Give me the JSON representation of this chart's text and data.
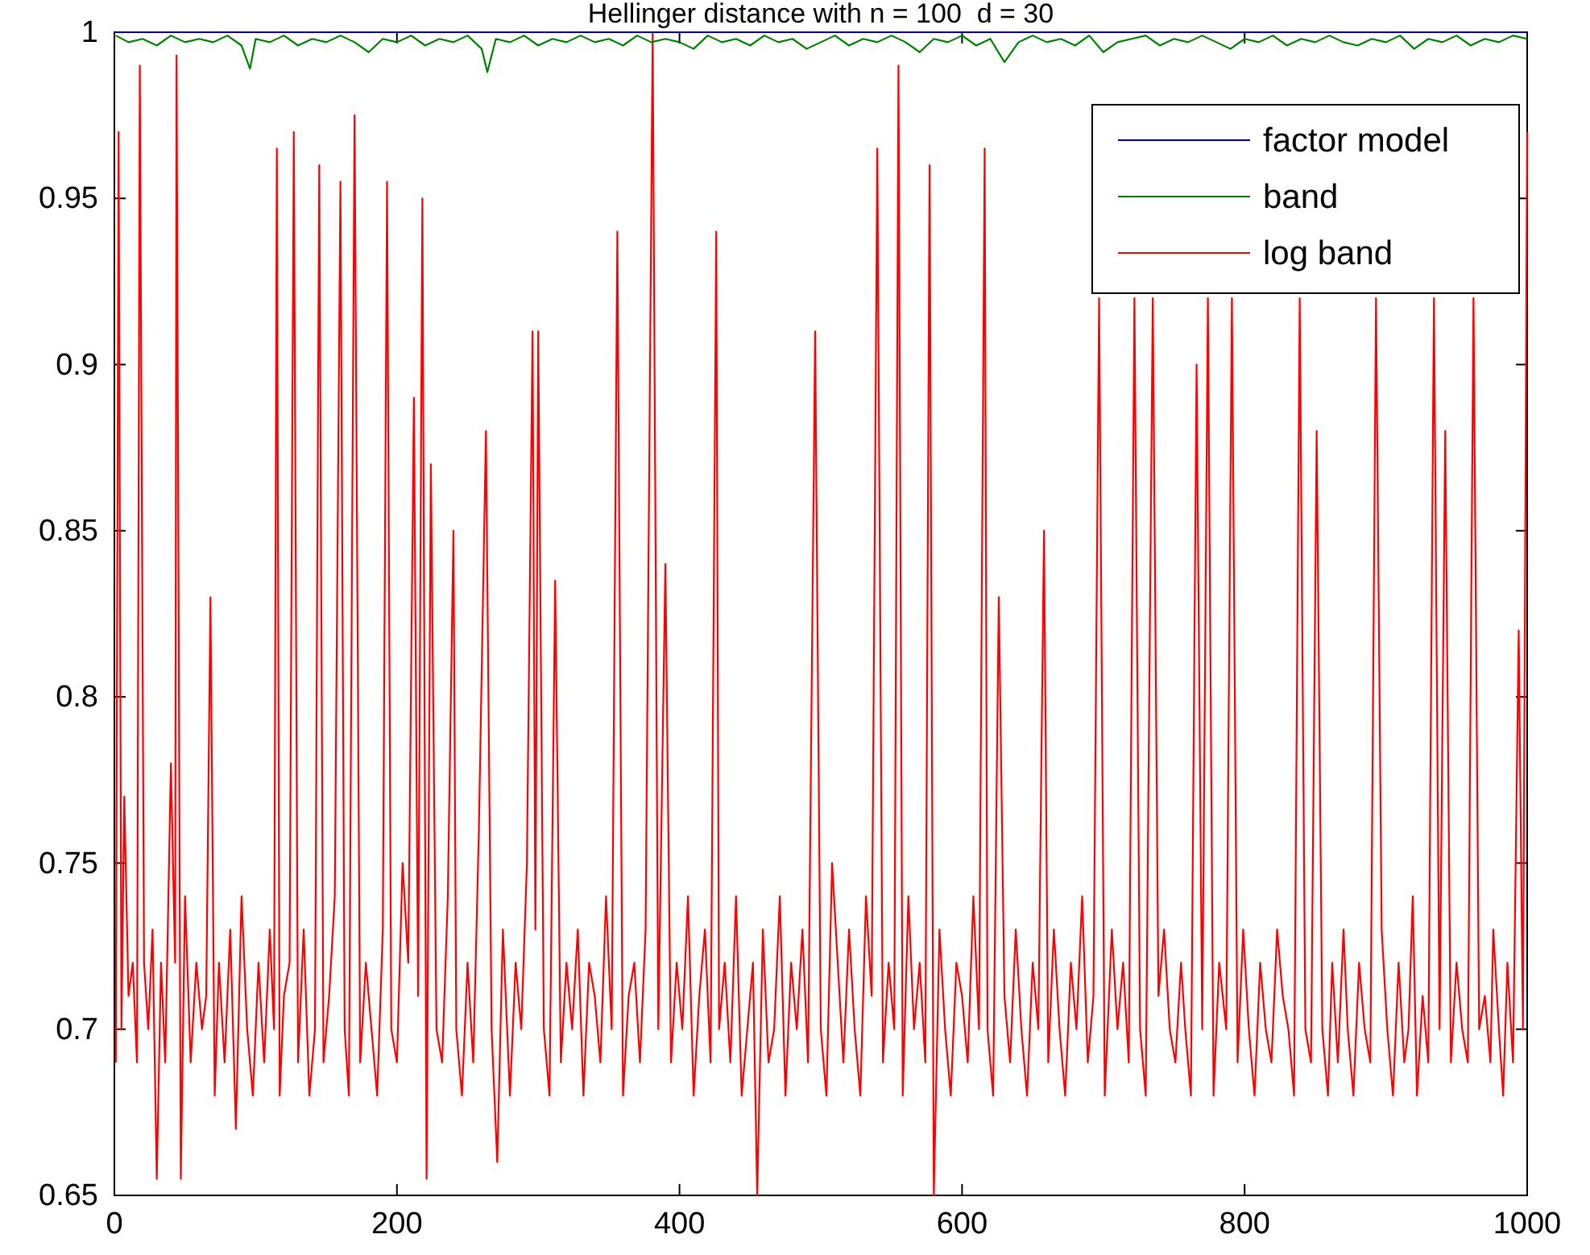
{
  "chart_data": {
    "type": "line",
    "title": "Hellinger distance with n = 100  d = 30",
    "xlim": [
      0,
      1000
    ],
    "ylim": [
      0.65,
      1
    ],
    "xticks": [
      0,
      200,
      400,
      600,
      800,
      1000
    ],
    "yticks": [
      0.65,
      {
        "value": 0.7,
        "label": "0.7"
      },
      0.75,
      {
        "value": 0.8,
        "label": "0.8"
      },
      0.85,
      {
        "value": 0.9,
        "label": "0.9"
      },
      0.95,
      {
        "value": 1,
        "label": "1"
      }
    ],
    "grid": false,
    "legend": "top right",
    "marker": "none",
    "line_style": "solid",
    "series": [
      {
        "name": "factor model",
        "color": "#00008b",
        "x": [
          1,
          1000
        ],
        "values": [
          1,
          1
        ]
      },
      {
        "name": "band",
        "color": "#008000",
        "x": [
          1,
          10,
          20,
          30,
          40,
          50,
          60,
          70,
          80,
          90,
          96,
          100,
          110,
          120,
          130,
          140,
          150,
          160,
          170,
          180,
          190,
          200,
          210,
          220,
          230,
          240,
          250,
          260,
          264,
          270,
          280,
          290,
          300,
          310,
          320,
          330,
          340,
          350,
          360,
          370,
          380,
          390,
          400,
          410,
          420,
          430,
          440,
          450,
          460,
          470,
          480,
          490,
          500,
          510,
          520,
          530,
          540,
          550,
          560,
          570,
          580,
          590,
          600,
          610,
          620,
          630,
          640,
          650,
          660,
          670,
          680,
          690,
          700,
          710,
          720,
          730,
          740,
          750,
          760,
          770,
          780,
          790,
          800,
          810,
          820,
          830,
          840,
          850,
          860,
          870,
          880,
          890,
          900,
          910,
          920,
          930,
          940,
          950,
          960,
          970,
          980,
          990,
          1000
        ],
        "values": [
          0.999,
          0.997,
          0.998,
          0.996,
          0.999,
          0.997,
          0.998,
          0.997,
          0.999,
          0.996,
          0.989,
          0.998,
          0.997,
          0.999,
          0.996,
          0.998,
          0.997,
          0.999,
          0.997,
          0.994,
          0.998,
          0.997,
          0.999,
          0.996,
          0.998,
          0.997,
          0.999,
          0.995,
          0.988,
          0.998,
          0.997,
          0.999,
          0.996,
          0.998,
          0.997,
          0.999,
          0.997,
          0.998,
          0.996,
          0.999,
          0.997,
          0.998,
          0.997,
          0.995,
          0.999,
          0.997,
          0.998,
          0.996,
          0.999,
          0.997,
          0.998,
          0.995,
          0.997,
          0.999,
          0.996,
          0.998,
          0.997,
          0.999,
          0.997,
          0.994,
          0.998,
          0.997,
          0.999,
          0.996,
          0.998,
          0.991,
          0.997,
          0.999,
          0.997,
          0.998,
          0.996,
          0.999,
          0.994,
          0.997,
          0.998,
          0.999,
          0.996,
          0.998,
          0.997,
          0.999,
          0.997,
          0.995,
          0.998,
          0.997,
          0.999,
          0.996,
          0.998,
          0.997,
          0.999,
          0.997,
          0.996,
          0.998,
          0.997,
          0.999,
          0.995,
          0.998,
          0.997,
          0.999,
          0.996,
          0.998,
          0.997,
          0.999,
          0.998
        ]
      },
      {
        "name": "log band",
        "color": "#ff0000",
        "x": [
          1,
          3,
          5,
          7,
          10,
          13,
          16,
          18,
          21,
          24,
          27,
          30,
          33,
          36,
          40,
          43,
          44,
          47,
          50,
          54,
          58,
          62,
          65,
          68,
          71,
          74,
          78,
          82,
          86,
          90,
          94,
          98,
          102,
          106,
          110,
          113,
          115,
          117,
          120,
          124,
          127,
          130,
          134,
          138,
          142,
          145,
          148,
          152,
          156,
          160,
          163,
          166,
          170,
          174,
          178,
          182,
          186,
          190,
          193,
          196,
          200,
          204,
          208,
          212,
          215,
          218,
          221,
          224,
          228,
          232,
          236,
          240,
          242,
          246,
          250,
          254,
          258,
          263,
          267,
          271,
          275,
          280,
          284,
          288,
          292,
          296,
          298,
          300,
          304,
          308,
          312,
          316,
          320,
          324,
          328,
          332,
          336,
          340,
          344,
          348,
          352,
          356,
          360,
          364,
          368,
          372,
          376,
          381,
          385,
          390,
          394,
          398,
          402,
          406,
          410,
          414,
          418,
          422,
          426,
          428,
          432,
          436,
          440,
          444,
          448,
          452,
          455,
          459,
          463,
          467,
          471,
          475,
          479,
          483,
          487,
          491,
          496,
          500,
          504,
          508,
          512,
          516,
          520,
          524,
          528,
          532,
          536,
          540,
          544,
          548,
          552,
          555,
          558,
          562,
          566,
          570,
          574,
          577,
          580,
          584,
          588,
          592,
          596,
          600,
          604,
          608,
          612,
          616,
          618,
          622,
          626,
          630,
          634,
          638,
          642,
          646,
          650,
          654,
          658,
          661,
          665,
          669,
          673,
          677,
          681,
          685,
          689,
          693,
          697,
          701,
          706,
          710,
          714,
          718,
          722,
          726,
          730,
          735,
          739,
          743,
          747,
          751,
          755,
          758,
          762,
          766,
          770,
          774,
          778,
          782,
          787,
          791,
          795,
          799,
          803,
          807,
          811,
          815,
          819,
          823,
          827,
          831,
          835,
          839,
          843,
          847,
          851,
          855,
          859,
          862,
          866,
          870,
          873,
          877,
          881,
          885,
          889,
          893,
          897,
          901,
          905,
          909,
          913,
          916,
          919,
          922,
          926,
          930,
          934,
          938,
          942,
          946,
          950,
          954,
          958,
          962,
          966,
          970,
          974,
          976,
          980,
          983,
          986,
          990,
          994,
          997,
          1000
        ],
        "values": [
          0.69,
          0.97,
          0.7,
          0.77,
          0.71,
          0.72,
          0.69,
          0.99,
          0.72,
          0.7,
          0.73,
          0.655,
          0.72,
          0.69,
          0.78,
          0.72,
          0.993,
          0.655,
          0.74,
          0.69,
          0.72,
          0.7,
          0.71,
          0.83,
          0.68,
          0.72,
          0.69,
          0.73,
          0.67,
          0.74,
          0.7,
          0.68,
          0.72,
          0.69,
          0.73,
          0.7,
          0.965,
          0.68,
          0.71,
          0.72,
          0.97,
          0.69,
          0.73,
          0.68,
          0.7,
          0.96,
          0.69,
          0.71,
          0.74,
          0.955,
          0.7,
          0.68,
          0.975,
          0.69,
          0.72,
          0.7,
          0.68,
          0.73,
          0.955,
          0.7,
          0.69,
          0.75,
          0.72,
          0.89,
          0.71,
          0.95,
          0.655,
          0.87,
          0.7,
          0.69,
          0.74,
          0.85,
          0.7,
          0.68,
          0.72,
          0.69,
          0.76,
          0.88,
          0.7,
          0.66,
          0.73,
          0.68,
          0.72,
          0.7,
          0.75,
          0.91,
          0.73,
          0.91,
          0.7,
          0.68,
          0.835,
          0.69,
          0.72,
          0.7,
          0.73,
          0.68,
          0.72,
          0.71,
          0.69,
          0.74,
          0.7,
          0.94,
          0.68,
          0.71,
          0.72,
          0.69,
          0.73,
          1.0,
          0.7,
          0.84,
          0.69,
          0.72,
          0.7,
          0.74,
          0.68,
          0.71,
          0.73,
          0.69,
          0.94,
          0.7,
          0.72,
          0.69,
          0.74,
          0.68,
          0.7,
          0.72,
          0.65,
          0.73,
          0.69,
          0.7,
          0.74,
          0.68,
          0.72,
          0.7,
          0.73,
          0.69,
          0.91,
          0.7,
          0.68,
          0.75,
          0.72,
          0.69,
          0.73,
          0.7,
          0.68,
          0.74,
          0.71,
          0.965,
          0.69,
          0.72,
          0.7,
          0.99,
          0.68,
          0.74,
          0.7,
          0.72,
          0.69,
          0.96,
          0.65,
          0.73,
          0.7,
          0.68,
          0.72,
          0.71,
          0.69,
          0.74,
          0.7,
          0.965,
          0.7,
          0.68,
          0.83,
          0.71,
          0.69,
          0.73,
          0.7,
          0.68,
          0.72,
          0.7,
          0.85,
          0.69,
          0.73,
          0.7,
          0.68,
          0.72,
          0.7,
          0.74,
          0.69,
          0.71,
          0.92,
          0.68,
          0.73,
          0.7,
          0.72,
          0.69,
          0.92,
          0.7,
          0.68,
          0.92,
          0.71,
          0.73,
          0.7,
          0.69,
          0.72,
          0.7,
          0.68,
          0.9,
          0.7,
          0.92,
          0.68,
          0.72,
          0.7,
          0.92,
          0.69,
          0.73,
          0.7,
          0.68,
          0.72,
          0.7,
          0.69,
          0.73,
          0.71,
          0.7,
          0.68,
          0.92,
          0.7,
          0.69,
          0.88,
          0.7,
          0.68,
          0.72,
          0.69,
          0.73,
          0.7,
          0.68,
          0.72,
          0.7,
          0.69,
          0.92,
          0.73,
          0.7,
          0.68,
          0.72,
          0.69,
          0.7,
          0.74,
          0.68,
          0.71,
          0.69,
          0.92,
          0.7,
          0.88,
          0.69,
          0.72,
          0.7,
          0.69,
          0.92,
          0.7,
          0.71,
          0.69,
          0.73,
          0.7,
          0.68,
          0.72,
          0.69,
          0.82,
          0.7,
          0.97
        ]
      }
    ]
  }
}
